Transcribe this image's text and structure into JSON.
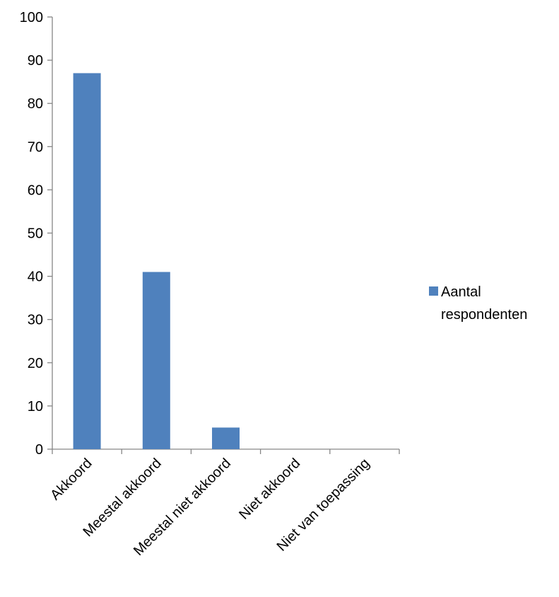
{
  "chart_data": {
    "type": "bar",
    "title": "",
    "xlabel": "",
    "ylabel": "",
    "categories": [
      "Akkoord",
      "Meestal akkoord",
      "Meestal niet akkoord",
      "Niet akkoord",
      "Niet van toepassing"
    ],
    "series": [
      {
        "name": "Aantal respondenten",
        "values": [
          87,
          41,
          5,
          0,
          0
        ],
        "color": "#4F81BD"
      }
    ],
    "ylim": [
      0,
      100
    ],
    "yticks": [
      0,
      10,
      20,
      30,
      40,
      50,
      60,
      70,
      80,
      90,
      100
    ],
    "grid": false,
    "legend_position": "right",
    "legend_lines": [
      "Aantal",
      "respondenten"
    ]
  }
}
